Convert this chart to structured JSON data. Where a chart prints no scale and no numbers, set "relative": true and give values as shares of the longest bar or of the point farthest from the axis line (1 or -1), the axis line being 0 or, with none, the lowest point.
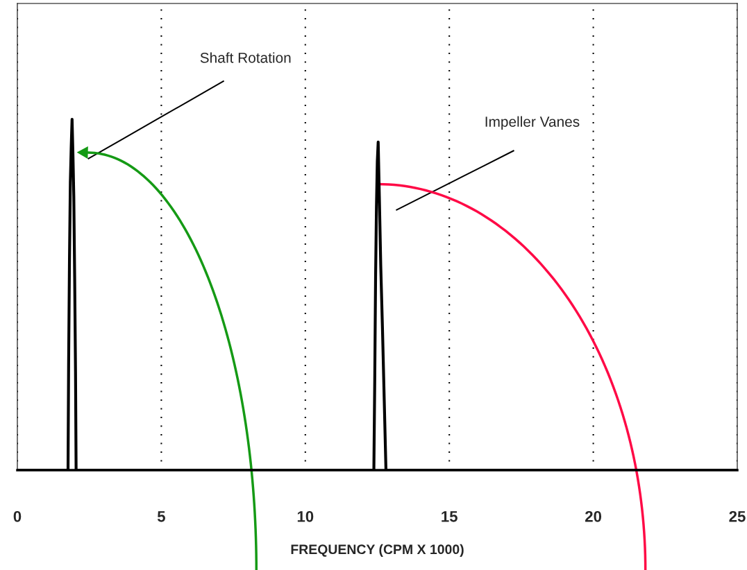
{
  "chart_data": {
    "type": "line",
    "relative": true,
    "xlabel": "FREQUENCY (CPM X 1000)",
    "xlim": [
      0,
      25
    ],
    "xticks": [
      0,
      5,
      10,
      15,
      20,
      25
    ],
    "grid": "x",
    "series": [
      {
        "color": "#000000",
        "x": [
          0,
          1.76,
          1.78,
          1.81,
          1.84,
          1.87,
          1.9,
          1.93,
          1.96,
          1.99,
          2.02,
          2.04,
          12.38,
          12.41,
          12.44,
          12.47,
          12.5,
          12.53,
          12.57,
          12.62,
          12.68,
          12.74,
          12.8,
          25
        ],
        "values": [
          0,
          0,
          0.3,
          0.6,
          0.82,
          0.92,
          1,
          0.9,
          0.78,
          0.55,
          0.28,
          0,
          0,
          0.25,
          0.55,
          0.75,
          0.88,
          0.935,
          0.78,
          0.58,
          0.4,
          0.2,
          0,
          0
        ]
      }
    ],
    "annotations": [
      "Shaft Rotation",
      "Impeller Vanes"
    ]
  }
}
